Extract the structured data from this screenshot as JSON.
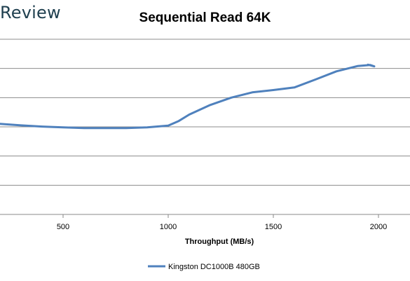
{
  "header": {
    "brand": "Review"
  },
  "chart_data": {
    "type": "line",
    "title": "Sequential Read 64K",
    "xlabel": "Throughput (MB/s)",
    "ylabel": "",
    "x_ticks": [
      500,
      1000,
      1500,
      2000
    ],
    "xlim": [
      200,
      2150
    ],
    "ylim": [
      0,
      6
    ],
    "grid": true,
    "legend_position": "bottom",
    "series": [
      {
        "name": "Kingston DC1000B 480GB",
        "color": "#4f81bd",
        "points": [
          [
            200,
            3.1
          ],
          [
            300,
            3.05
          ],
          [
            400,
            3.01
          ],
          [
            500,
            2.98
          ],
          [
            600,
            2.96
          ],
          [
            700,
            2.96
          ],
          [
            800,
            2.96
          ],
          [
            900,
            2.98
          ],
          [
            1000,
            3.04
          ],
          [
            1050,
            3.2
          ],
          [
            1100,
            3.42
          ],
          [
            1200,
            3.75
          ],
          [
            1300,
            4.0
          ],
          [
            1400,
            4.18
          ],
          [
            1500,
            4.26
          ],
          [
            1600,
            4.35
          ],
          [
            1700,
            4.62
          ],
          [
            1800,
            4.9
          ],
          [
            1900,
            5.08
          ],
          [
            1960,
            5.12
          ],
          [
            1980,
            5.07
          ],
          [
            1950,
            5.13
          ]
        ]
      }
    ]
  }
}
